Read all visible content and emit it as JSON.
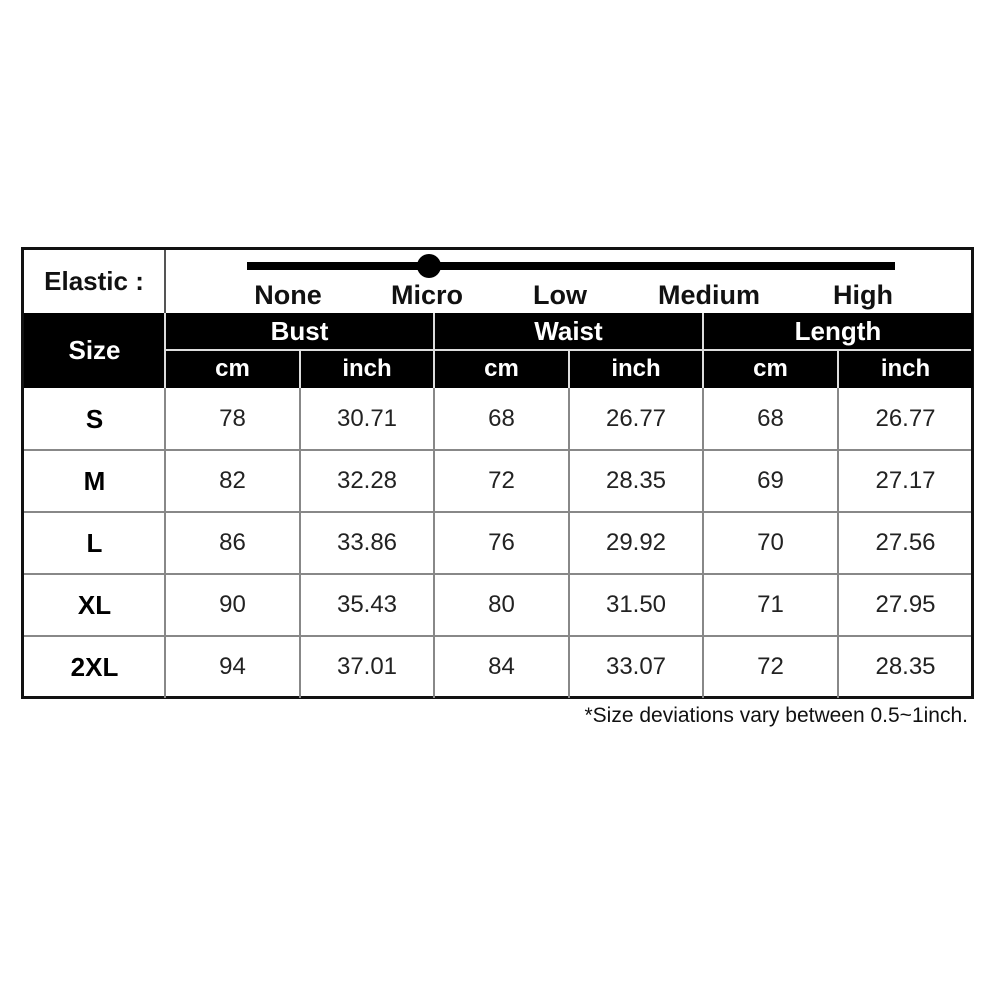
{
  "elastic": {
    "label": "Elastic :",
    "levels": [
      "None",
      "Micro",
      "Low",
      "Medium",
      "High"
    ],
    "selected": "Micro"
  },
  "table": {
    "size_header": "Size",
    "groups": [
      "Bust",
      "Waist",
      "Length"
    ],
    "units": [
      "cm",
      "inch"
    ],
    "rows": [
      {
        "size": "S",
        "values": [
          "78",
          "30.71",
          "68",
          "26.77",
          "68",
          "26.77"
        ]
      },
      {
        "size": "M",
        "values": [
          "82",
          "32.28",
          "72",
          "28.35",
          "69",
          "27.17"
        ]
      },
      {
        "size": "L",
        "values": [
          "86",
          "33.86",
          "76",
          "29.92",
          "70",
          "27.56"
        ]
      },
      {
        "size": "XL",
        "values": [
          "90",
          "35.43",
          "80",
          "31.50",
          "71",
          "27.95"
        ]
      },
      {
        "size": "2XL",
        "values": [
          "94",
          "37.01",
          "84",
          "33.07",
          "72",
          "28.35"
        ]
      }
    ]
  },
  "note": "*Size deviations vary between 0.5~1inch.",
  "colors": {
    "header_bg": "#000000",
    "header_text": "#ffffff",
    "grid": "#888888"
  }
}
